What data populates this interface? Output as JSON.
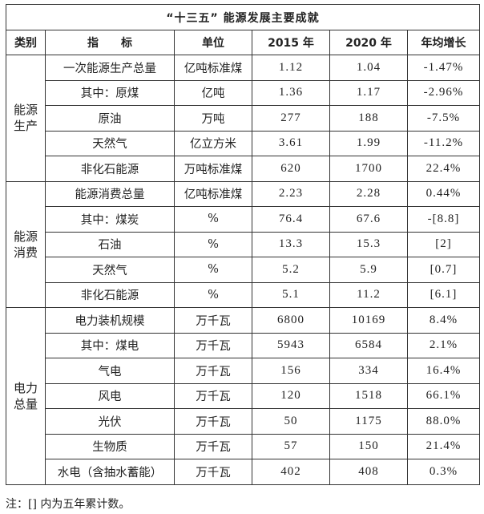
{
  "title": "“十三五” 能源发展主要成就",
  "headers": [
    "类别",
    "指　　标",
    "单位",
    "2015 年",
    "2020 年",
    "年均增长"
  ],
  "groups": [
    {
      "category": "能源生产",
      "rows": [
        [
          "一次能源生产总量",
          "亿吨标准煤",
          "1.12",
          "1.04",
          "-1.47%"
        ],
        [
          "其中：原煤",
          "亿吨",
          "1.36",
          "1.17",
          "-2.96%"
        ],
        [
          "原油",
          "万吨",
          "277",
          "188",
          "-7.5%"
        ],
        [
          "天然气",
          "亿立方米",
          "3.61",
          "1.99",
          "-11.2%"
        ],
        [
          "非化石能源",
          "万吨标准煤",
          "620",
          "1700",
          "22.4%"
        ]
      ]
    },
    {
      "category": "能源消费",
      "rows": [
        [
          "能源消费总量",
          "亿吨标准煤",
          "2.23",
          "2.28",
          "0.44%"
        ],
        [
          "其中：煤炭",
          "%",
          "76.4",
          "67.6",
          "-[8.8]"
        ],
        [
          "石油",
          "%",
          "13.3",
          "15.3",
          "[2]"
        ],
        [
          "天然气",
          "%",
          "5.2",
          "5.9",
          "[0.7]"
        ],
        [
          "非化石能源",
          "%",
          "5.1",
          "11.2",
          "[6.1]"
        ]
      ]
    },
    {
      "category": "电力总量",
      "rows": [
        [
          "电力装机规模",
          "万千瓦",
          "6800",
          "10169",
          "8.4%"
        ],
        [
          "其中：煤电",
          "万千瓦",
          "5943",
          "6584",
          "2.1%"
        ],
        [
          "气电",
          "万千瓦",
          "156",
          "334",
          "16.4%"
        ],
        [
          "风电",
          "万千瓦",
          "120",
          "1518",
          "66.1%"
        ],
        [
          "光伏",
          "万千瓦",
          "50",
          "1175",
          "88.0%"
        ],
        [
          "生物质",
          "万千瓦",
          "57",
          "150",
          "21.4%"
        ],
        [
          "水电（含抽水蓄能）",
          "万千瓦",
          "402",
          "408",
          "0.3%"
        ]
      ]
    }
  ],
  "note": "注：[] 内为五年累计数。"
}
